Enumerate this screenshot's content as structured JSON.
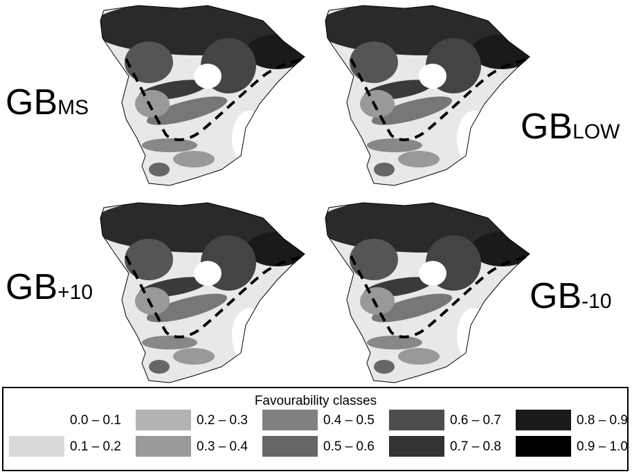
{
  "panels": [
    {
      "label": "GB",
      "subscript": "MS"
    },
    {
      "label": "GB",
      "subscript": "LOW"
    },
    {
      "label": "GB",
      "subscript": "+10"
    },
    {
      "label": "GB",
      "subscript": "-10"
    }
  ],
  "legend": {
    "title": "Favourability classes",
    "classes": [
      {
        "label": "0.0 – 0.1",
        "color": "#ffffff"
      },
      {
        "label": "0.1 – 0.2",
        "color": "#d9d9d9"
      },
      {
        "label": "0.2 – 0.3",
        "color": "#b3b3b3"
      },
      {
        "label": "0.3 – 0.4",
        "color": "#9a9a9a"
      },
      {
        "label": "0.4 – 0.5",
        "color": "#808080"
      },
      {
        "label": "0.5 – 0.6",
        "color": "#666666"
      },
      {
        "label": "0.6 – 0.7",
        "color": "#4d4d4d"
      },
      {
        "label": "0.7 – 0.8",
        "color": "#333333"
      },
      {
        "label": "0.8 – 0.9",
        "color": "#1a1a1a"
      },
      {
        "label": "0.9 – 1.0",
        "color": "#000000"
      }
    ]
  }
}
